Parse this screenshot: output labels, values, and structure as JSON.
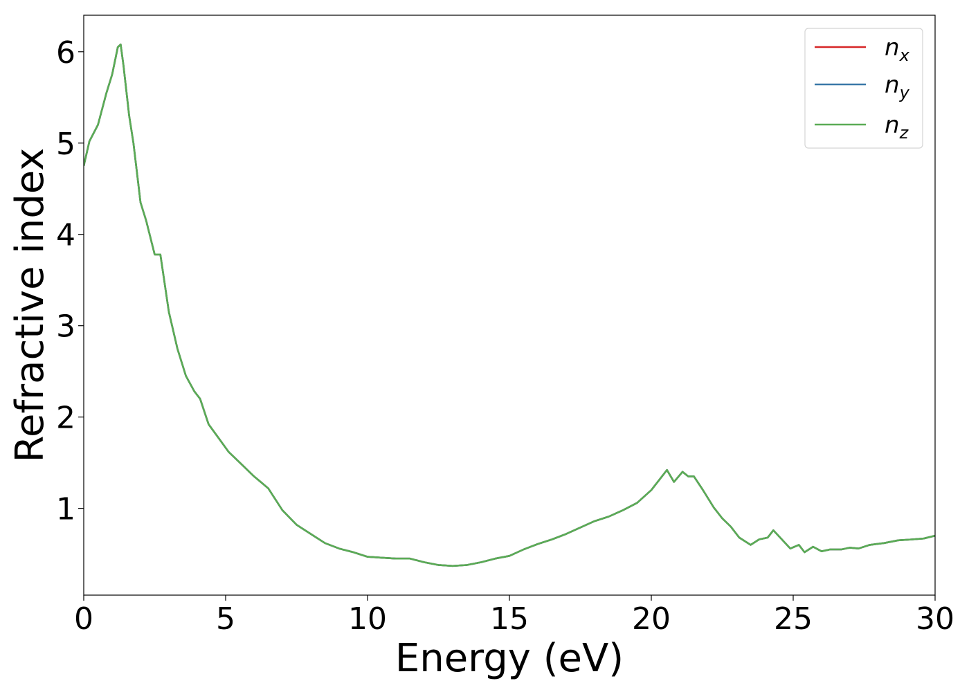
{
  "chart_data": {
    "type": "line",
    "xlabel": "Energy (eV)",
    "ylabel": "Refractive index",
    "xlim": [
      0,
      30
    ],
    "ylim": [
      0.05,
      6.4
    ],
    "x_ticks": [
      0,
      5,
      10,
      15,
      20,
      25,
      30
    ],
    "x_tick_labels": [
      "0",
      "5",
      "10",
      "15",
      "20",
      "25",
      "30"
    ],
    "y_ticks": [
      1,
      2,
      3,
      4,
      5,
      6
    ],
    "y_tick_labels": [
      "1",
      "2",
      "3",
      "4",
      "5",
      "6"
    ],
    "grid": false,
    "legend_position": "top-right",
    "x": [
      0,
      0.2,
      0.5,
      0.8,
      1.0,
      1.2,
      1.3,
      1.4,
      1.6,
      1.75,
      2.0,
      2.2,
      2.5,
      2.7,
      3.0,
      3.3,
      3.6,
      3.9,
      4.1,
      4.4,
      4.8,
      5.1,
      5.5,
      6.0,
      6.5,
      7.0,
      7.5,
      8.0,
      8.5,
      9.0,
      9.5,
      10.0,
      10.5,
      11.0,
      11.5,
      12.0,
      12.5,
      13.0,
      13.5,
      14.0,
      14.5,
      15.0,
      15.5,
      16.0,
      16.5,
      17.0,
      17.5,
      18.0,
      18.5,
      19.0,
      19.5,
      20.0,
      20.3,
      20.55,
      20.8,
      21.1,
      21.3,
      21.5,
      21.8,
      22.2,
      22.5,
      22.8,
      23.1,
      23.5,
      23.8,
      24.1,
      24.3,
      24.6,
      24.9,
      25.2,
      25.4,
      25.7,
      26.0,
      26.3,
      26.7,
      27.0,
      27.3,
      27.7,
      28.2,
      28.7,
      29.2,
      29.6,
      30.0
    ],
    "series": [
      {
        "name": "n_x",
        "label_base": "n",
        "label_sub": "x",
        "color": "#d62728",
        "values": [
          4.75,
          5.02,
          5.2,
          5.55,
          5.75,
          6.05,
          6.08,
          5.85,
          5.3,
          5.0,
          4.35,
          4.15,
          3.78,
          3.78,
          3.15,
          2.75,
          2.45,
          2.28,
          2.2,
          1.92,
          1.75,
          1.62,
          1.5,
          1.35,
          1.22,
          0.98,
          0.82,
          0.72,
          0.62,
          0.56,
          0.52,
          0.47,
          0.46,
          0.45,
          0.45,
          0.41,
          0.38,
          0.37,
          0.38,
          0.41,
          0.45,
          0.48,
          0.55,
          0.61,
          0.66,
          0.72,
          0.79,
          0.86,
          0.91,
          0.98,
          1.06,
          1.2,
          1.32,
          1.42,
          1.29,
          1.4,
          1.35,
          1.35,
          1.21,
          1.01,
          0.89,
          0.8,
          0.68,
          0.6,
          0.66,
          0.68,
          0.76,
          0.66,
          0.56,
          0.6,
          0.52,
          0.58,
          0.53,
          0.55,
          0.55,
          0.57,
          0.56,
          0.6,
          0.62,
          0.65,
          0.66,
          0.67,
          0.7
        ]
      },
      {
        "name": "n_y",
        "label_base": "n",
        "label_sub": "y",
        "color": "#3a78a8",
        "values": [
          4.75,
          5.02,
          5.2,
          5.55,
          5.75,
          6.05,
          6.08,
          5.85,
          5.3,
          5.0,
          4.35,
          4.15,
          3.78,
          3.78,
          3.15,
          2.75,
          2.45,
          2.28,
          2.2,
          1.92,
          1.75,
          1.62,
          1.5,
          1.35,
          1.22,
          0.98,
          0.82,
          0.72,
          0.62,
          0.56,
          0.52,
          0.47,
          0.46,
          0.45,
          0.45,
          0.41,
          0.38,
          0.37,
          0.38,
          0.41,
          0.45,
          0.48,
          0.55,
          0.61,
          0.66,
          0.72,
          0.79,
          0.86,
          0.91,
          0.98,
          1.06,
          1.2,
          1.32,
          1.42,
          1.29,
          1.4,
          1.35,
          1.35,
          1.21,
          1.01,
          0.89,
          0.8,
          0.68,
          0.6,
          0.66,
          0.68,
          0.76,
          0.66,
          0.56,
          0.6,
          0.52,
          0.58,
          0.53,
          0.55,
          0.55,
          0.57,
          0.56,
          0.6,
          0.62,
          0.65,
          0.66,
          0.67,
          0.7
        ]
      },
      {
        "name": "n_z",
        "label_base": "n",
        "label_sub": "z",
        "color": "#5aac55",
        "values": [
          4.75,
          5.02,
          5.2,
          5.55,
          5.75,
          6.05,
          6.08,
          5.85,
          5.3,
          5.0,
          4.35,
          4.15,
          3.78,
          3.78,
          3.15,
          2.75,
          2.45,
          2.28,
          2.2,
          1.92,
          1.75,
          1.62,
          1.5,
          1.35,
          1.22,
          0.98,
          0.82,
          0.72,
          0.62,
          0.56,
          0.52,
          0.47,
          0.46,
          0.45,
          0.45,
          0.41,
          0.38,
          0.37,
          0.38,
          0.41,
          0.45,
          0.48,
          0.55,
          0.61,
          0.66,
          0.72,
          0.79,
          0.86,
          0.91,
          0.98,
          1.06,
          1.2,
          1.32,
          1.42,
          1.29,
          1.4,
          1.35,
          1.35,
          1.21,
          1.01,
          0.89,
          0.8,
          0.68,
          0.6,
          0.66,
          0.68,
          0.76,
          0.66,
          0.56,
          0.6,
          0.52,
          0.58,
          0.53,
          0.55,
          0.55,
          0.57,
          0.56,
          0.6,
          0.62,
          0.65,
          0.66,
          0.67,
          0.7
        ]
      }
    ]
  }
}
